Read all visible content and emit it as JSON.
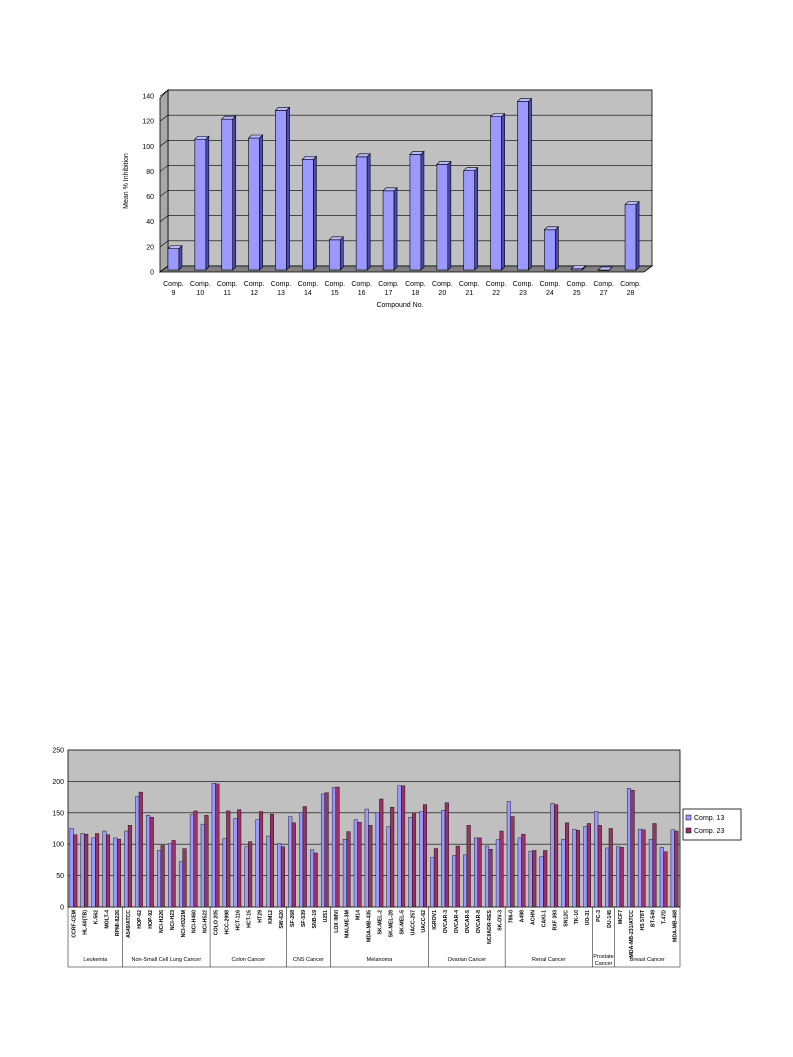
{
  "chart_data": [
    {
      "type": "bar",
      "ylabel": "Mean % Inhibition",
      "xlabel": "Compound No.",
      "ylim": [
        0,
        140
      ],
      "yticks": [
        0,
        20,
        40,
        60,
        80,
        100,
        120,
        140
      ],
      "grid": true,
      "categories": [
        [
          "Comp.",
          "9"
        ],
        [
          "Comp.",
          "10"
        ],
        [
          "Comp.",
          "11"
        ],
        [
          "Comp.",
          "12"
        ],
        [
          "Comp.",
          "13"
        ],
        [
          "Comp.",
          "14"
        ],
        [
          "Comp.",
          "15"
        ],
        [
          "Comp.",
          "16"
        ],
        [
          "Comp.",
          "17"
        ],
        [
          "Comp.",
          "18"
        ],
        [
          "Comp.",
          "20"
        ],
        [
          "Comp.",
          "21"
        ],
        [
          "Comp.",
          "22"
        ],
        [
          "Comp.",
          "23"
        ],
        [
          "Comp.",
          "24"
        ],
        [
          "Comp.",
          "25"
        ],
        [
          "Comp.",
          "27"
        ],
        [
          "Comp.",
          "28"
        ]
      ],
      "values": [
        17,
        104,
        120,
        105,
        127,
        88,
        24,
        90,
        63,
        92,
        84,
        79,
        122,
        134,
        32,
        1,
        0,
        52
      ],
      "colors": {
        "bar": "#9999ff",
        "bar_side": "#4b4bb3",
        "plot_bg": "#c0c0c0",
        "grid": "#000000"
      }
    },
    {
      "type": "bar",
      "ylim": [
        0,
        250
      ],
      "yticks": [
        0,
        50,
        100,
        150,
        200,
        250
      ],
      "grid": true,
      "legend_position": "right",
      "series": [
        {
          "name": "Comp. 13",
          "color": "#9999ff"
        },
        {
          "name": "Comp. 23",
          "color": "#993366"
        }
      ],
      "groups": [
        {
          "name": "Leukemia",
          "cells": [
            [
              "CCRF-CEM",
              125,
              115
            ],
            [
              "HL-60(TB)",
              117,
              116
            ],
            [
              "K-562",
              110,
              117
            ],
            [
              "MOLT-4",
              121,
              115
            ],
            [
              "RPMI-8226",
              110,
              108
            ]
          ]
        },
        {
          "name": "Non-Small Cell Lung Cancer",
          "cells": [
            [
              "A549/ATCC",
              121,
              130
            ],
            [
              "HOP-62",
              176,
              183
            ],
            [
              "HOP-92",
              146,
              143
            ],
            [
              "NCI-H226",
              90,
              98
            ],
            [
              "NCI-H23",
              101,
              106
            ],
            [
              "NCI-H322M",
              72,
              93
            ],
            [
              "NCI-H460",
              147,
              153
            ],
            [
              "NCI-H522",
              132,
              146
            ]
          ]
        },
        {
          "name": "Colon Cancer",
          "cells": [
            [
              "COLO 205",
              197,
              196
            ],
            [
              "HCC-2998",
              109,
              153
            ],
            [
              "HCT-116",
              141,
              155
            ],
            [
              "HCT-15",
              96,
              104
            ],
            [
              "HT29",
              139,
              152
            ],
            [
              "KM12",
              113,
              148
            ],
            [
              "SW-620",
              101,
              96
            ]
          ]
        },
        {
          "name": "CNS Cancer",
          "cells": [
            [
              "SF-268",
              144,
              134
            ],
            [
              "SF-539",
              150,
              160
            ],
            [
              "SNB-19",
              91,
              86
            ],
            [
              "U251",
              180,
              182
            ]
          ]
        },
        {
          "name": "Melanoma",
          "cells": [
            [
              "LOX IMVI",
              190,
              191
            ],
            [
              "MALME-3M",
              108,
              120
            ],
            [
              "M14",
              139,
              135
            ],
            [
              "MDA-MB-435",
              156,
              130
            ],
            [
              "SK-MEL-2",
              150,
              172
            ],
            [
              "SK-MEL-28",
              128,
              159
            ],
            [
              "SK-MEL-5",
              193,
              193
            ],
            [
              "UACC-257",
              143,
              150
            ],
            [
              "UACC-62",
              152,
              163
            ]
          ]
        },
        {
          "name": "Ovarian Cancer",
          "cells": [
            [
              "IGROV1",
              79,
              93
            ],
            [
              "OVCAR-3",
              154,
              166
            ],
            [
              "OVCAR-4",
              82,
              97
            ],
            [
              "OVCAR-5",
              83,
              130
            ],
            [
              "OVCAR-8",
              110,
              110
            ],
            [
              "NCI/ADR-RES",
              97,
              92
            ],
            [
              "SK-OV-3",
              107,
              121
            ]
          ]
        },
        {
          "name": "Renal Cancer",
          "cells": [
            [
              "786-0",
              168,
              144
            ],
            [
              "A498",
              110,
              116
            ],
            [
              "ACHN",
              89,
              90
            ],
            [
              "CAKI-1",
              80,
              90
            ],
            [
              "RXF 393",
              165,
              163
            ],
            [
              "SN12C",
              108,
              134
            ],
            [
              "TK-10",
              124,
              122
            ],
            [
              "UO-31",
              128,
              133
            ]
          ]
        },
        {
          "name": "Prostate Cancer",
          "cells": [
            [
              "PC-3",
              152,
              130
            ],
            [
              "DU-145",
              94,
              125
            ]
          ]
        },
        {
          "name": "Breast Cancer",
          "cells": [
            [
              "MCF7",
              96,
              95
            ],
            [
              "MDA-MB-231/ATCC",
              189,
              186
            ],
            [
              "HS 578T",
              124,
              123
            ],
            [
              "BT-549",
              108,
              133
            ],
            [
              "T-47D",
              95,
              88
            ],
            [
              "MDA-MB-468",
              123,
              121
            ]
          ]
        }
      ],
      "colors": {
        "plot_bg": "#c0c0c0",
        "grid": "#000000"
      }
    }
  ]
}
